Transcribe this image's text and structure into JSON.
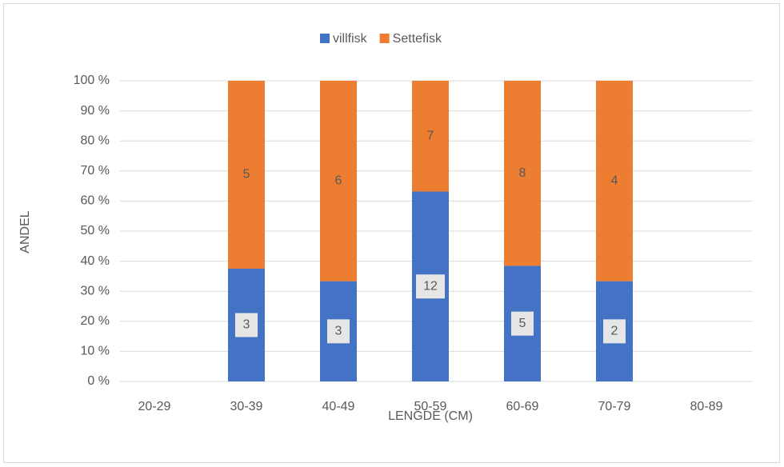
{
  "chart_data": {
    "type": "bar",
    "stacked": "percent",
    "categories": [
      "20-29",
      "30-39",
      "40-49",
      "50-59",
      "60-69",
      "70-79",
      "80-89"
    ],
    "series": [
      {
        "name": "villfisk",
        "color": "#4472c4",
        "values": [
          null,
          3,
          3,
          12,
          5,
          2,
          null
        ]
      },
      {
        "name": "Settefisk",
        "color": "#ed7d31",
        "values": [
          null,
          5,
          6,
          7,
          8,
          4,
          null
        ]
      }
    ],
    "ylim": [
      0,
      100
    ],
    "yticks": [
      {
        "value": 0,
        "label": "0 %"
      },
      {
        "value": 10,
        "label": "10 %"
      },
      {
        "value": 20,
        "label": "20 %"
      },
      {
        "value": 30,
        "label": "30 %"
      },
      {
        "value": 40,
        "label": "40 %"
      },
      {
        "value": 50,
        "label": "50 %"
      },
      {
        "value": 60,
        "label": "60 %"
      },
      {
        "value": 70,
        "label": "70 %"
      },
      {
        "value": 80,
        "label": "80 %"
      },
      {
        "value": 90,
        "label": "90 %"
      },
      {
        "value": 100,
        "label": "100 %"
      }
    ],
    "xlabel": "LENGDE (CM)",
    "ylabel": "ANDEL",
    "grid": true,
    "legend": "top"
  }
}
